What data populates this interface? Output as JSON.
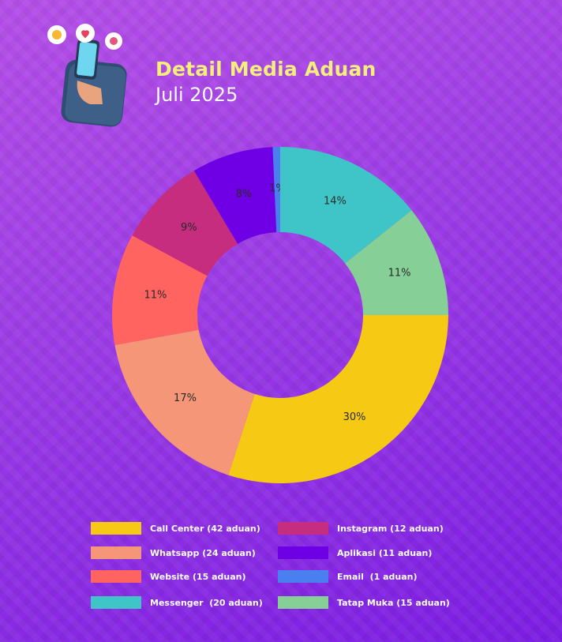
{
  "title": "Detail Media Aduan",
  "subtitle": "Juli 2025",
  "chart_data": {
    "type": "pie",
    "donut": true,
    "slices": [
      {
        "label": "Call Center (42 aduan)",
        "value": 42,
        "percent_label": "30%",
        "color": "#f6c915"
      },
      {
        "label": "Whatsapp (24 aduan)",
        "value": 24,
        "percent_label": "17%",
        "color": "#f69679"
      },
      {
        "label": "Website (15 aduan)",
        "value": 15,
        "percent_label": "11%",
        "color": "#ff6461"
      },
      {
        "label": "Instagram (12 aduan)",
        "value": 12,
        "percent_label": "9%",
        "color": "#c62d7e"
      },
      {
        "label": "Aplikasi (11 aduan)",
        "value": 11,
        "percent_label": "8%",
        "color": "#6f00e6"
      },
      {
        "label": "Email  (1 aduan)",
        "value": 1,
        "percent_label": "1%",
        "color": "#4a7fef"
      },
      {
        "label": "Messenger  (20 aduan)",
        "value": 20,
        "percent_label": "14%",
        "color": "#3fc4c7"
      },
      {
        "label": "Tatap Muka (15 aduan)",
        "value": 15,
        "percent_label": "11%",
        "color": "#86cf97"
      }
    ],
    "legend_position": "bottom"
  }
}
